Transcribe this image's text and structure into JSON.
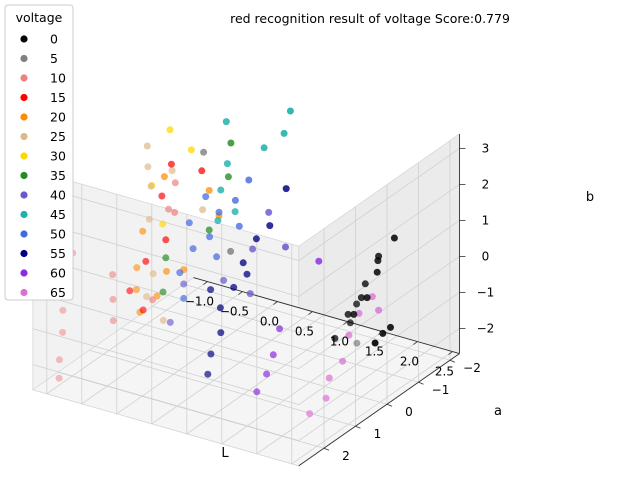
{
  "chart_data": {
    "type": "scatter",
    "projection": "3d",
    "title": "red recognition result of voltage Score:0.779",
    "xlabel": "L",
    "ylabel": "a",
    "zlabel": "b",
    "xlim": [
      -1.2,
      2.6
    ],
    "ylim": [
      -2.3,
      2.8
    ],
    "zlim": [
      -2.7,
      3.4
    ],
    "xticks": [
      "−1.0",
      "−0.5",
      "0.0",
      "0.5",
      "1.0",
      "1.5",
      "2.0",
      "2.5"
    ],
    "yticks": [
      "−2",
      "−1",
      "0",
      "1",
      "2"
    ],
    "zticks": [
      "−2",
      "−1",
      "0",
      "1",
      "2",
      "3"
    ],
    "grid": true,
    "legend": {
      "title": "voltage",
      "position": "upper-left outside"
    },
    "series": [
      {
        "name": "0",
        "color": "#000000",
        "points": [
          [
            2.3,
            -0.9,
            1.2
          ],
          [
            2.3,
            -0.4,
            1.0
          ],
          [
            2.2,
            -0.6,
            0.7
          ],
          [
            2.2,
            -0.2,
            0.3
          ],
          [
            2.3,
            0.3,
            0.1
          ],
          [
            2.1,
            -0.8,
            0.2
          ],
          [
            2.1,
            -0.3,
            -0.2
          ],
          [
            2.0,
            -0.7,
            -0.5
          ],
          [
            2.0,
            -0.1,
            -0.6
          ],
          [
            1.9,
            -0.5,
            -0.9
          ],
          [
            1.9,
            0.1,
            -1.2
          ],
          [
            2.3,
            0.5,
            -0.3
          ],
          [
            2.2,
            -1.0,
            -1.4
          ],
          [
            2.0,
            -1.2,
            -1.8
          ],
          [
            1.8,
            -1.4,
            -2.3
          ]
        ]
      },
      {
        "name": "5",
        "color": "#808080",
        "points": [
          [
            2.35,
            0.4,
            -0.9
          ],
          [
            -0.2,
            -0.4,
            2.5
          ],
          [
            0.05,
            -0.7,
            -0.3
          ]
        ]
      },
      {
        "name": "10",
        "color": "#f08080",
        "points": [
          [
            -0.9,
            2.3,
            1.6
          ],
          [
            -0.9,
            2.2,
            0.9
          ],
          [
            -0.95,
            2.3,
            0.0
          ],
          [
            -0.95,
            2.4,
            -0.6
          ],
          [
            -1.0,
            2.3,
            -1.3
          ],
          [
            -1.0,
            2.4,
            -2.0
          ],
          [
            -1.05,
            2.3,
            -2.6
          ],
          [
            -0.6,
            1.6,
            0.1
          ],
          [
            -0.55,
            1.7,
            -0.5
          ],
          [
            -0.5,
            1.8,
            -1.0
          ],
          [
            -0.3,
            1.0,
            -0.8
          ],
          [
            -0.2,
            0.5,
            2.2
          ],
          [
            -0.25,
            0.6,
            1.5
          ],
          [
            -0.3,
            0.3,
            1.2
          ]
        ]
      },
      {
        "name": "15",
        "color": "#ff0000",
        "points": [
          [
            -0.3,
            0.4,
            2.6
          ],
          [
            -0.3,
            0.7,
            1.9
          ],
          [
            -0.2,
            0.8,
            0.8
          ],
          [
            -0.35,
            1.1,
            0.3
          ],
          [
            -0.4,
            1.5,
            -0.3
          ],
          [
            -0.3,
            1.3,
            -0.9
          ],
          [
            0.0,
            0.1,
            2.4
          ]
        ]
      },
      {
        "name": "20",
        "color": "#ff8c00",
        "points": [
          [
            -0.4,
            0.4,
            2.2
          ],
          [
            -0.35,
            1.2,
            1.2
          ],
          [
            -0.3,
            1.5,
            0.4
          ],
          [
            -0.35,
            1.4,
            -0.3
          ],
          [
            -0.3,
            1.4,
            -0.9
          ],
          [
            -0.1,
            1.0,
            0.1
          ],
          [
            0.15,
            0.2,
            2.0
          ],
          [
            0.2,
            0.0,
            1.2
          ],
          [
            -0.1,
            1.3,
            -0.4
          ],
          [
            0.1,
            0.9,
            0.2
          ]
        ]
      },
      {
        "name": "25",
        "color": "#deb887",
        "points": [
          [
            -0.6,
            0.5,
            3.0
          ],
          [
            -0.5,
            0.7,
            2.6
          ],
          [
            -0.5,
            0.6,
            2.0
          ],
          [
            -0.3,
            1.1,
            1.5
          ],
          [
            -0.2,
            0.6,
            2.6
          ],
          [
            -0.2,
            1.2,
            0.1
          ],
          [
            -0.25,
            1.3,
            -0.5
          ],
          [
            -0.1,
            1.1,
            -1.2
          ],
          [
            0.1,
            0.3,
            1.5
          ]
        ]
      },
      {
        "name": "30",
        "color": "#ffd700",
        "points": [
          [
            -0.5,
            0.0,
            3.2
          ],
          [
            -0.15,
            0.1,
            2.9
          ],
          [
            -0.4,
            0.8,
            2.2
          ],
          [
            -0.2,
            0.9,
            1.3
          ]
        ]
      },
      {
        "name": "35",
        "color": "#228b22",
        "points": [
          [
            0.1,
            -0.6,
            2.8
          ],
          [
            -0.2,
            0.8,
            0.3
          ],
          [
            -0.15,
            1.0,
            -0.5
          ],
          [
            0.15,
            0.2,
            0.9
          ],
          [
            0.2,
            -0.3,
            2.1
          ]
        ]
      },
      {
        "name": "40",
        "color": "#6a5acd",
        "points": [
          [
            0.55,
            -0.8,
            1.0
          ],
          [
            0.5,
            -0.4,
            0.2
          ],
          [
            0.4,
            0.3,
            -0.3
          ],
          [
            0.6,
            -0.1,
            -0.8
          ],
          [
            0.1,
            0.9,
            -0.2
          ],
          [
            0.0,
            1.1,
            -1.2
          ],
          [
            0.7,
            -1.0,
            0.0
          ]
        ]
      },
      {
        "name": "45",
        "color": "#20b2aa",
        "points": [
          [
            0.5,
            -1.6,
            3.3
          ],
          [
            0.5,
            -1.4,
            2.8
          ],
          [
            0.35,
            -1.1,
            2.5
          ],
          [
            -0.1,
            -0.9,
            3.1
          ],
          [
            0.05,
            -0.6,
            2.2
          ],
          [
            0.0,
            -0.5,
            1.5
          ],
          [
            0.05,
            -0.3,
            0.8
          ],
          [
            0.25,
            -0.4,
            1.1
          ]
        ]
      },
      {
        "name": "50",
        "color": "#4169e1",
        "points": [
          [
            0.4,
            -0.5,
            2.0
          ],
          [
            0.3,
            -0.3,
            1.5
          ],
          [
            0.2,
            0.0,
            1.3
          ],
          [
            0.2,
            0.3,
            0.8
          ],
          [
            0.1,
            0.6,
            0.6
          ],
          [
            0.0,
            0.8,
            0.0
          ],
          [
            0.1,
            0.9,
            -0.6
          ],
          [
            0.3,
            0.3,
            0.3
          ],
          [
            0.1,
            0.2,
            1.8
          ],
          [
            0.4,
            -0.2,
            0.9
          ],
          [
            0.0,
            0.5,
            1.2
          ]
        ]
      },
      {
        "name": "55",
        "color": "#000080",
        "points": [
          [
            0.8,
            -0.8,
            1.8
          ],
          [
            0.7,
            -0.5,
            0.9
          ],
          [
            0.6,
            -0.3,
            0.6
          ],
          [
            0.5,
            -0.1,
            0.0
          ],
          [
            0.5,
            0.2,
            -0.5
          ],
          [
            0.4,
            0.4,
            -1.0
          ],
          [
            0.45,
            0.5,
            -1.6
          ],
          [
            0.4,
            0.7,
            -2.1
          ],
          [
            0.4,
            0.8,
            -2.6
          ],
          [
            0.6,
            0.0,
            -0.2
          ],
          [
            0.35,
            0.6,
            -0.4
          ]
        ]
      },
      {
        "name": "60",
        "color": "#8a2be2",
        "points": [
          [
            1.4,
            -0.5,
            0.3
          ],
          [
            1.2,
            0.3,
            -1.2
          ],
          [
            1.2,
            0.5,
            -1.8
          ],
          [
            1.15,
            0.6,
            -2.3
          ],
          [
            1.1,
            0.8,
            -2.7
          ]
        ]
      },
      {
        "name": "65",
        "color": "#da70d6",
        "points": [
          [
            2.3,
            -0.4,
            -0.5
          ],
          [
            2.2,
            0.0,
            -0.4
          ],
          [
            2.1,
            0.1,
            -1.0
          ],
          [
            2.1,
            0.3,
            -1.6
          ],
          [
            2.0,
            0.5,
            -2.0
          ],
          [
            2.0,
            0.6,
            -2.5
          ],
          [
            1.9,
            0.9,
            -2.8
          ],
          [
            2.3,
            -0.2,
            0.0
          ]
        ]
      }
    ]
  }
}
